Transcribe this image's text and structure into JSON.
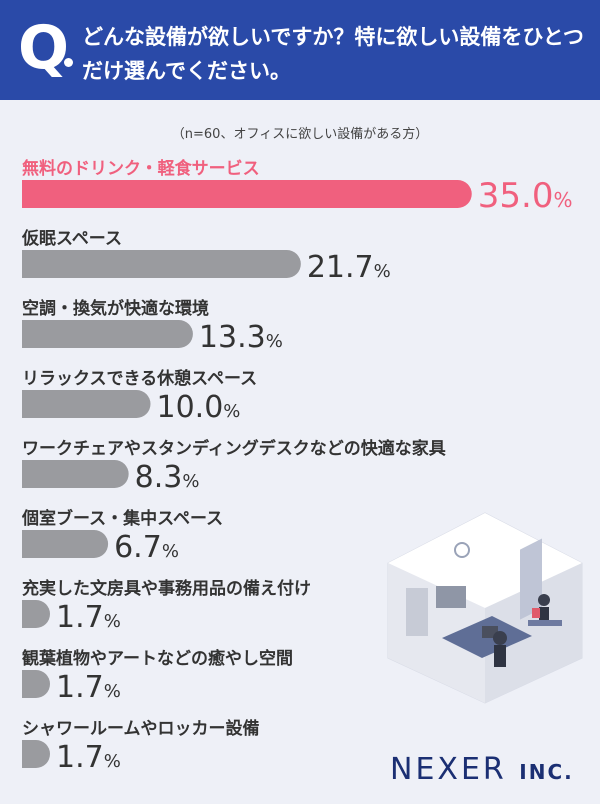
{
  "header": {
    "q_mark": "Q",
    "question": "どんな設備が欲しいですか？特に欲しい設備をひとつだけ選んでください。"
  },
  "note": "（n=60、オフィスに欲しい設備がある方）",
  "colors": {
    "header": "#2a4aa8",
    "highlight": "#f0607e",
    "bar": "#9a9b9f",
    "label": "#333333",
    "background": "#eef0f7"
  },
  "chart_data": {
    "type": "bar",
    "orientation": "horizontal",
    "unit": "%",
    "categories": [
      "無料のドリンク・軽食サービス",
      "仮眠スペース",
      "空調・換気が快適な環境",
      "リラックスできる休憩スペース",
      "ワークチェアやスタンディングデスクなどの快適な家具",
      "個室ブース・集中スペース",
      "充実した文房具や事務用品の備え付け",
      "観葉植物やアートなどの癒やし空間",
      "シャワールームやロッカー設備"
    ],
    "values": [
      35.0,
      21.7,
      13.3,
      10.0,
      8.3,
      6.7,
      1.7,
      1.7,
      1.7
    ],
    "value_labels": [
      "35.0",
      "21.7",
      "13.3",
      "10.0",
      "8.3",
      "6.7",
      "1.7",
      "1.7",
      "1.7"
    ],
    "highlight_index": 0,
    "grid": false
  },
  "logo": {
    "name": "NEXER",
    "suffix": "INC."
  }
}
